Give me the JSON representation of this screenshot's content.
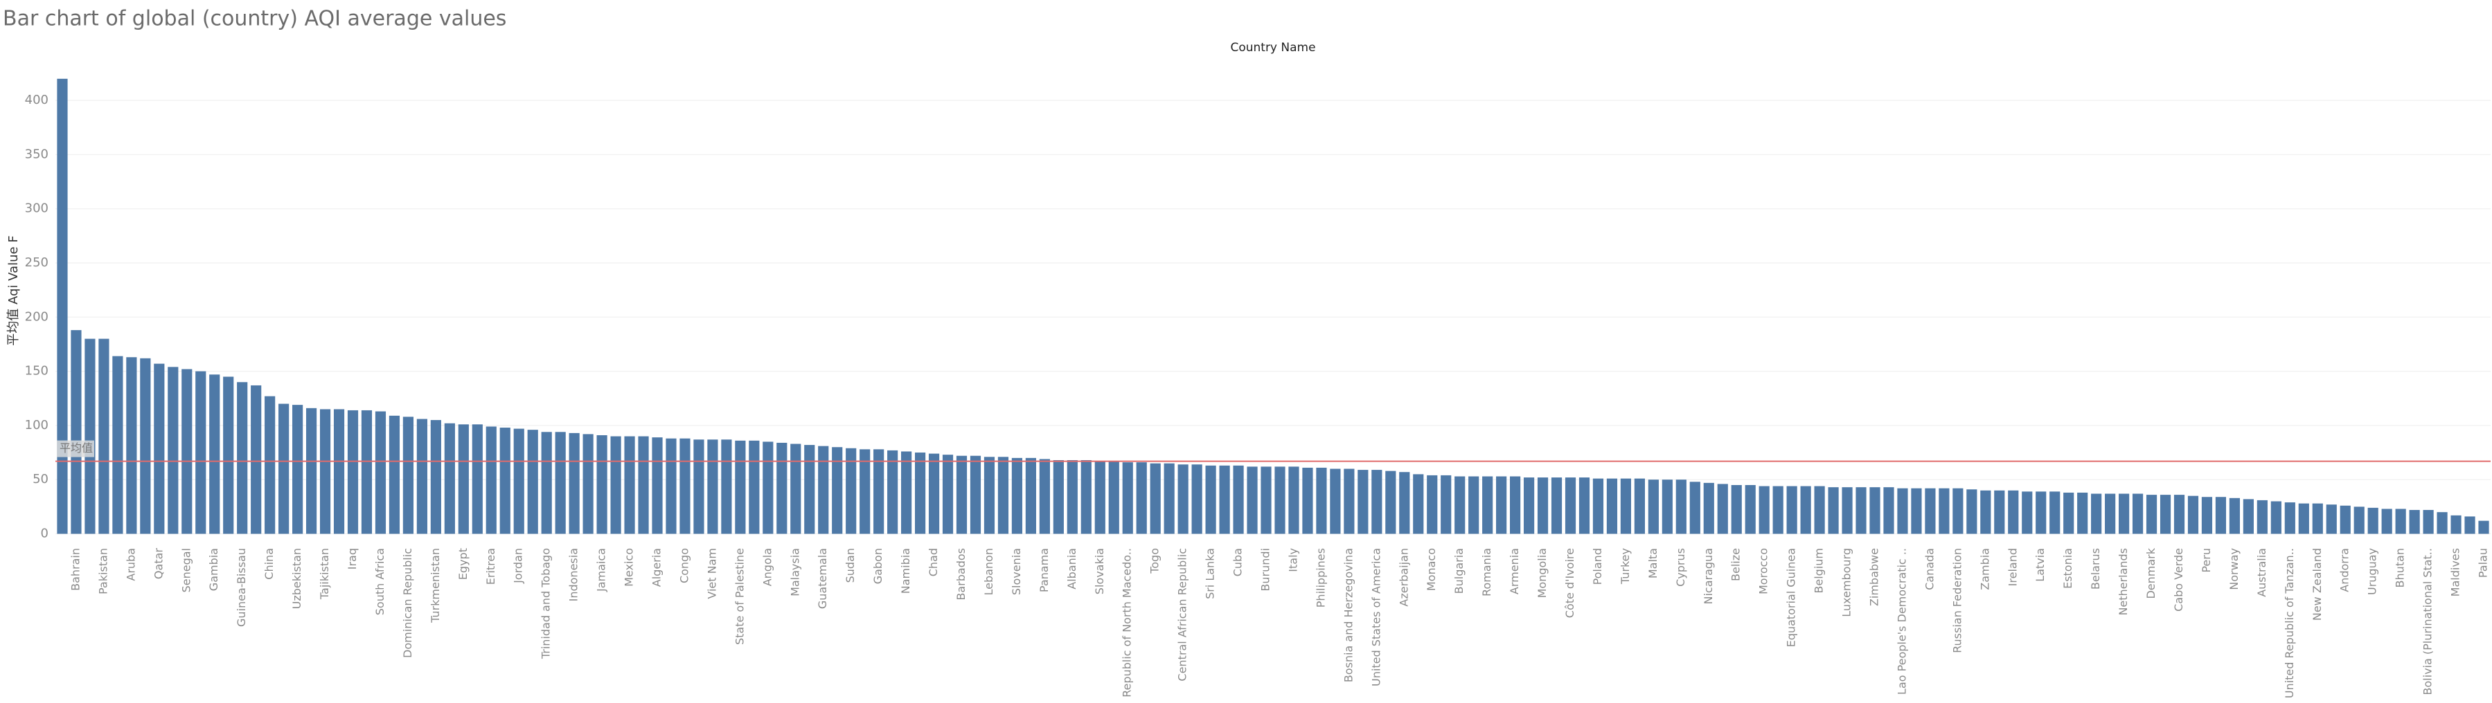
{
  "chart_data": {
    "type": "bar",
    "title": "Bar chart of global (country) AQI average values",
    "x_header": "Country Name",
    "y_label": "平均值 Aqi Value F",
    "color": "#4e79a7",
    "grid": true,
    "ylim": [
      -8,
      425
    ],
    "yticks": [
      0,
      50,
      100,
      150,
      200,
      250,
      300,
      350,
      400
    ],
    "reference_line": {
      "label": "平均值",
      "value": 67,
      "color": "#e06c6c"
    },
    "categories": [
      null,
      "Bahrain",
      null,
      "Pakistan",
      null,
      "Aruba",
      null,
      "Qatar",
      null,
      "Senegal",
      null,
      "Gambia",
      null,
      "Guinea-Bissau",
      null,
      "China",
      null,
      "Uzbekistan",
      null,
      "Tajikistan",
      null,
      "Iraq",
      null,
      "South Africa",
      null,
      "Dominican Republic",
      null,
      "Turkmenistan",
      null,
      "Egypt",
      null,
      "Eritrea",
      null,
      "Jordan",
      null,
      "Trinidad and Tobago",
      null,
      "Indonesia",
      null,
      "Jamaica",
      null,
      "Mexico",
      null,
      "Algeria",
      null,
      "Congo",
      null,
      "Viet Nam",
      null,
      "State of Palestine",
      null,
      "Angola",
      null,
      "Malaysia",
      null,
      "Guatemala",
      null,
      "Sudan",
      null,
      "Gabon",
      null,
      "Namibia",
      null,
      "Chad",
      null,
      "Barbados",
      null,
      "Lebanon",
      null,
      "Slovenia",
      null,
      "Panama",
      null,
      "Albania",
      null,
      "Slovakia",
      null,
      "Republic of North Macedo..",
      null,
      "Togo",
      null,
      "Central African Republic",
      null,
      "Sri Lanka",
      null,
      "Cuba",
      null,
      "Burundi",
      null,
      "Italy",
      null,
      "Philippines",
      null,
      "Bosnia and Herzegovina",
      null,
      "United States of America",
      null,
      "Azerbaijan",
      null,
      "Monaco",
      null,
      "Bulgaria",
      null,
      "Romania",
      null,
      "Armenia",
      null,
      "Mongolia",
      null,
      "Côte d'Ivoire",
      null,
      "Poland",
      null,
      "Turkey",
      null,
      "Malta",
      null,
      "Cyprus",
      null,
      "Nicaragua",
      null,
      "Belize",
      null,
      "Morocco",
      null,
      "Equatorial Guinea",
      null,
      "Belgium",
      null,
      "Luxembourg",
      null,
      "Zimbabwe",
      null,
      "Lao People's Democratic ..",
      null,
      "Canada",
      null,
      "Russian Federation",
      null,
      "Zambia",
      null,
      "Ireland",
      null,
      "Latvia",
      null,
      "Estonia",
      null,
      "Belarus",
      null,
      "Netherlands",
      null,
      "Denmark",
      null,
      "Cabo Verde",
      null,
      "Peru",
      null,
      "Norway",
      null,
      "Australia",
      null,
      "United Republic of Tanzan..",
      null,
      "New Zealand",
      null,
      "Andorra",
      null,
      "Uruguay",
      null,
      "Bhutan",
      null,
      "Bolivia (Plurinational Stat..",
      null,
      "Maldives",
      null,
      "Palau"
    ],
    "values": [
      420,
      188,
      180,
      180,
      164,
      163,
      162,
      157,
      154,
      152,
      150,
      147,
      145,
      140,
      137,
      127,
      120,
      119,
      116,
      115,
      115,
      114,
      114,
      113,
      109,
      108,
      106,
      105,
      102,
      101,
      101,
      99,
      98,
      97,
      96,
      94,
      94,
      93,
      92,
      91,
      90,
      90,
      90,
      89,
      88,
      88,
      87,
      87,
      87,
      86,
      86,
      85,
      84,
      83,
      82,
      81,
      80,
      79,
      78,
      78,
      77,
      76,
      75,
      74,
      73,
      72,
      72,
      71,
      71,
      70,
      70,
      69,
      68,
      68,
      68,
      67,
      67,
      66,
      66,
      65,
      65,
      64,
      64,
      63,
      63,
      63,
      62,
      62,
      62,
      62,
      61,
      61,
      60,
      60,
      59,
      59,
      58,
      57,
      55,
      54,
      54,
      53,
      53,
      53,
      53,
      53,
      52,
      52,
      52,
      52,
      52,
      51,
      51,
      51,
      51,
      50,
      50,
      50,
      48,
      47,
      46,
      45,
      45,
      44,
      44,
      44,
      44,
      44,
      43,
      43,
      43,
      43,
      43,
      42,
      42,
      42,
      42,
      42,
      41,
      40,
      40,
      40,
      39,
      39,
      39,
      38,
      38,
      37,
      37,
      37,
      37,
      36,
      36,
      36,
      35,
      34,
      34,
      33,
      32,
      31,
      30,
      29,
      28,
      28,
      27,
      26,
      25,
      24,
      23,
      23,
      22,
      22,
      20,
      17,
      16,
      12
    ]
  }
}
